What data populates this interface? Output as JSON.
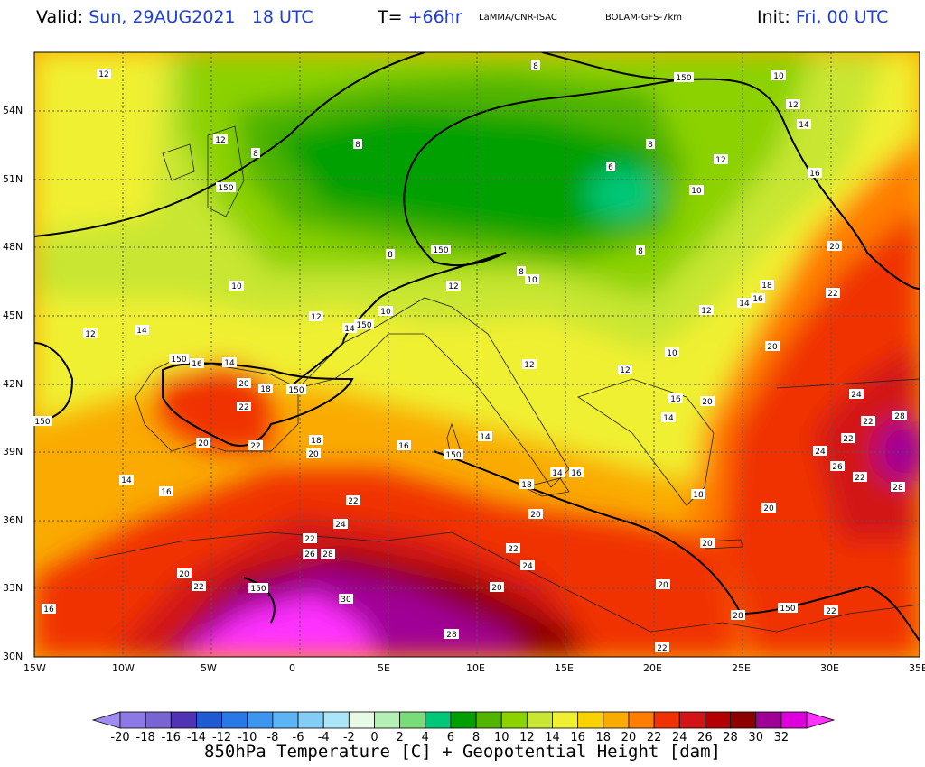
{
  "header": {
    "valid_key": "Valid:",
    "valid_value": "Sun, 29AUG2021   18 UTC",
    "t_key": "T=",
    "t_value": "+66hr",
    "source": "LaMMA/CNR-ISAC",
    "model": "BOLAM-GFS-7km",
    "init_key": "Init:",
    "init_value": "Fri, 00 UTC"
  },
  "axes": {
    "lat_labels": [
      "54N",
      "51N",
      "48N",
      "45N",
      "42N",
      "39N",
      "36N",
      "33N",
      "30N"
    ],
    "lon_labels": [
      "15W",
      "10W",
      "5W",
      "0",
      "5E",
      "10E",
      "15E",
      "20E",
      "25E",
      "30E",
      "35E"
    ]
  },
  "colorbar": {
    "title": "850hPa Temperature [C] + Geopotential Height [dam]",
    "ticks": [
      "-20",
      "-18",
      "-16",
      "-14",
      "-12",
      "-10",
      "-8",
      "-6",
      "-4",
      "-2",
      "0",
      "2",
      "4",
      "6",
      "8",
      "10",
      "12",
      "14",
      "16",
      "18",
      "20",
      "22",
      "24",
      "26",
      "28",
      "30",
      "32"
    ],
    "colors": [
      "#a08cf0",
      "#8c78e6",
      "#7864d2",
      "#5032b4",
      "#1e5ad2",
      "#2878e6",
      "#3c96f0",
      "#5ab4f5",
      "#82cdf5",
      "#aae6fa",
      "#e6fae6",
      "#b4f0b4",
      "#78dc78",
      "#00c878",
      "#00a000",
      "#50b400",
      "#8cd200",
      "#c8e632",
      "#f0f032",
      "#fad200",
      "#faaa00",
      "#ff7d00",
      "#f03200",
      "#d21414",
      "#b40000",
      "#8c0000",
      "#a00096",
      "#dc00dc",
      "#ff32ff"
    ]
  },
  "field_labels": [
    "12",
    "8",
    "150",
    "10",
    "12",
    "14",
    "16",
    "20",
    "22",
    "24",
    "26",
    "28",
    "30",
    "6",
    "18"
  ]
}
